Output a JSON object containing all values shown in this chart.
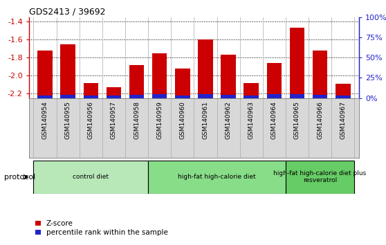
{
  "title": "GDS2413 / 39692",
  "samples": [
    "GSM140954",
    "GSM140955",
    "GSM140956",
    "GSM140957",
    "GSM140958",
    "GSM140959",
    "GSM140960",
    "GSM140961",
    "GSM140962",
    "GSM140963",
    "GSM140964",
    "GSM140965",
    "GSM140966",
    "GSM140967"
  ],
  "zscore": [
    -1.72,
    -1.65,
    -2.08,
    -2.13,
    -1.88,
    -1.75,
    -1.92,
    -1.6,
    -1.77,
    -2.08,
    -1.86,
    -1.47,
    -1.72,
    -2.09
  ],
  "percentile": [
    3,
    4,
    3,
    3,
    4,
    5,
    3,
    5,
    4,
    3,
    5,
    5,
    4,
    3
  ],
  "bar_color_red": "#cc0000",
  "bar_color_blue": "#2222cc",
  "ylim_left": [
    -2.25,
    -1.35
  ],
  "ylim_right": [
    0,
    100
  ],
  "yticks_left": [
    -2.2,
    -2.0,
    -1.8,
    -1.6,
    -1.4
  ],
  "yticks_right": [
    0,
    25,
    50,
    75,
    100
  ],
  "ylabel_left_color": "#cc0000",
  "ylabel_right_color": "#2222cc",
  "groups": [
    {
      "label": "control diet",
      "start": 0,
      "end": 5,
      "color": "#b8e8b8"
    },
    {
      "label": "high-fat high-calorie diet",
      "start": 5,
      "end": 11,
      "color": "#88dd88"
    },
    {
      "label": "high-fat high-calorie diet plus\nresveratrol",
      "start": 11,
      "end": 14,
      "color": "#66cc66"
    }
  ],
  "protocol_label": "protocol",
  "legend_zscore": "Z-score",
  "legend_percentile": "percentile rank within the sample",
  "bar_width": 0.65,
  "tick_label_bg": "#d8d8d8",
  "spine_color": "#888888"
}
